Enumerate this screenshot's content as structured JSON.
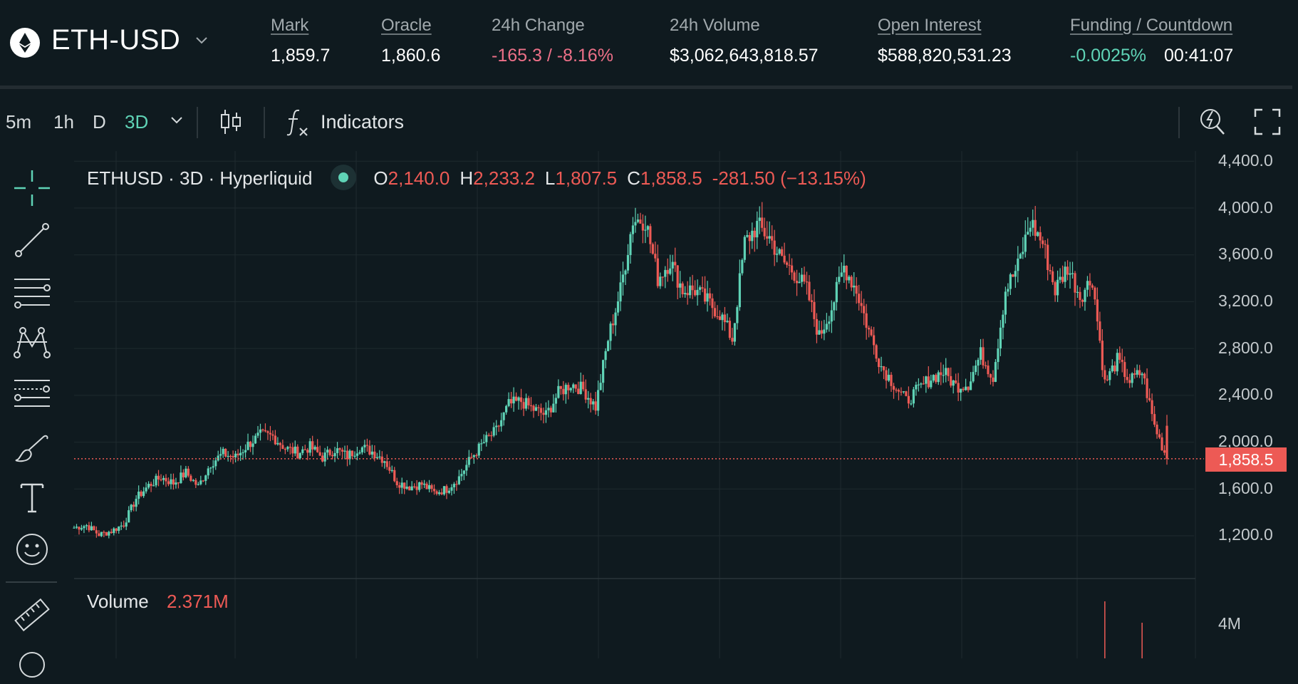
{
  "header": {
    "pair": "ETH-USD",
    "stats": {
      "mark": {
        "label": "Mark",
        "value": "1,859.7"
      },
      "oracle": {
        "label": "Oracle",
        "value": "1,860.6"
      },
      "change": {
        "label": "24h Change",
        "value": "-165.3 / -8.16%"
      },
      "volume": {
        "label": "24h Volume",
        "value": "$3,062,643,818.57"
      },
      "open_interest": {
        "label": "Open Interest",
        "value": "$588,820,531.23"
      },
      "funding": {
        "label": "Funding / Countdown",
        "rate": "-0.0025%",
        "countdown": "00:41:07"
      }
    }
  },
  "toolbar": {
    "timeframes": [
      "5m",
      "1h",
      "D",
      "3D"
    ],
    "active_timeframe": "3D",
    "indicators_label": "Indicators"
  },
  "tools": [
    "crosshair",
    "trend-line",
    "horizontal-lines",
    "pattern",
    "fib-retracement",
    "brush",
    "text",
    "emoji",
    "ruler"
  ],
  "legend": {
    "symbol": "ETHUSD · 3D · Hyperliquid",
    "open_label": "O",
    "open": "2,140.0",
    "high_label": "H",
    "high": "2,233.2",
    "low_label": "L",
    "low": "1,807.5",
    "close_label": "C",
    "close": "1,858.5",
    "change": "-281.50 (−13.15%)"
  },
  "volume_panel": {
    "label": "Volume",
    "value": "2.371M",
    "tick": "4M"
  },
  "price_axis": {
    "ticks": [
      "4,400.0",
      "4,000.0",
      "3,600.0",
      "3,200.0",
      "2,800.0",
      "2,400.0",
      "2,000.0",
      "1,600.0",
      "1,200.0"
    ]
  },
  "current_price": "1,858.5",
  "colors": {
    "up": "#5fd3b6",
    "down": "#ed5a55",
    "accent": "#5fd3b6",
    "background": "#0f1a1f"
  },
  "chart_data": {
    "type": "candlestick",
    "title": "ETHUSD · 3D · Hyperliquid",
    "ylim": [
      1000,
      4450
    ],
    "current_price": 1858.5,
    "last_candle": {
      "open": 2140.0,
      "high": 2233.2,
      "low": 1807.5,
      "close": 1858.5
    },
    "close_path": [
      1270,
      1290,
      1210,
      1240,
      1300,
      1520,
      1630,
      1700,
      1650,
      1740,
      1620,
      1820,
      1900,
      1870,
      1980,
      2060,
      2050,
      1950,
      1910,
      1960,
      1870,
      1940,
      1880,
      1960,
      1920,
      1850,
      1660,
      1620,
      1640,
      1570,
      1600,
      1700,
      1870,
      2000,
      2100,
      2320,
      2350,
      2280,
      2230,
      2420,
      2500,
      2450,
      2300,
      2880,
      3300,
      3900,
      3900,
      3400,
      3550,
      3300,
      3300,
      3200,
      3100,
      2880,
      3700,
      3850,
      3750,
      3550,
      3450,
      3300,
      2900,
      3150,
      3500,
      3300,
      2950,
      2650,
      2500,
      2350,
      2450,
      2550,
      2600,
      2480,
      2500,
      2750,
      2560,
      3300,
      3500,
      3880,
      3700,
      3300,
      3500,
      3250,
      3400,
      2500,
      2700,
      2520,
      2600,
      2140,
      1858.5
    ],
    "volume_spikes": [
      {
        "x_index": 83,
        "volume": "tall"
      },
      {
        "x_index": 86,
        "volume": "tall"
      }
    ]
  }
}
